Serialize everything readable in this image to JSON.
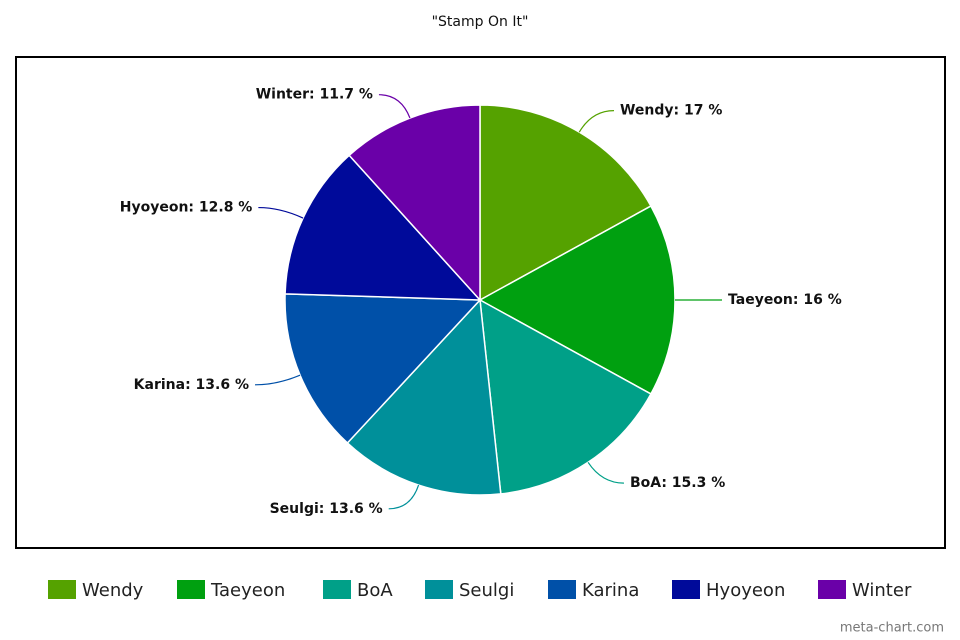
{
  "chart_data": {
    "type": "pie",
    "title": "\"Stamp On It\"",
    "categories": [
      "Wendy",
      "Taeyeon",
      "BoA",
      "Seulgi",
      "Karina",
      "Hyoyeon",
      "Winter"
    ],
    "values": [
      17,
      16,
      15.3,
      13.6,
      13.6,
      12.8,
      11.7
    ],
    "value_labels": [
      "Wendy: 17 %",
      "Taeyeon: 16 %",
      "BoA: 15.3 %",
      "Seulgi: 13.6 %",
      "Karina: 13.6 %",
      "Hyoyeon: 12.8 %",
      "Winter: 11.7 %"
    ],
    "colors": [
      "#55a200",
      "#00a010",
      "#00a088",
      "#00909a",
      "#0050a8",
      "#000a9a",
      "#6a00a8"
    ],
    "legend": "bottom",
    "source": "meta-chart.com"
  }
}
